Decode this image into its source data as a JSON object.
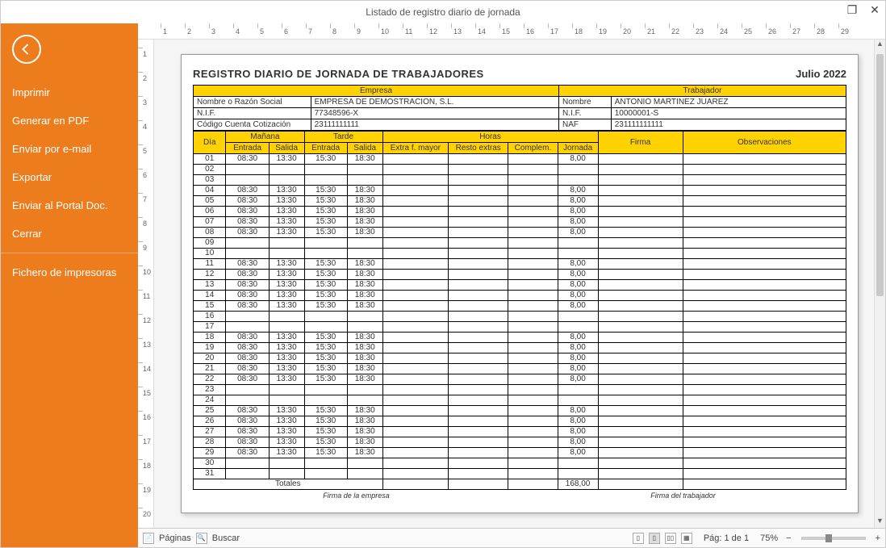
{
  "window": {
    "title": "Listado de registro diario de jornada",
    "maximize": "❐",
    "close": "✕"
  },
  "sidebar": {
    "items": [
      {
        "label": "Imprimir"
      },
      {
        "label": "Generar en PDF"
      },
      {
        "label": "Enviar por e-mail"
      },
      {
        "label": "Exportar"
      },
      {
        "label": "Enviar al Portal Doc."
      },
      {
        "label": "Cerrar"
      }
    ],
    "secondary": [
      {
        "label": "Fichero de impresoras"
      }
    ]
  },
  "rulerH": [
    "1",
    "2",
    "3",
    "4",
    "5",
    "6",
    "7",
    "8",
    "9",
    "10",
    "11",
    "12",
    "13",
    "14",
    "15",
    "16",
    "17",
    "18",
    "19",
    "20",
    "21",
    "22",
    "23",
    "24",
    "25",
    "26",
    "27",
    "28",
    "29"
  ],
  "rulerV": [
    "1",
    "2",
    "3",
    "4",
    "5",
    "6",
    "7",
    "8",
    "9",
    "10",
    "11",
    "12",
    "13",
    "14",
    "15",
    "16",
    "17",
    "18",
    "19",
    "20"
  ],
  "report": {
    "title": "REGISTRO DIARIO DE JORNADA DE TRABAJADORES",
    "period": "Julio 2022",
    "company_header": "Empresa",
    "worker_header": "Trabajador",
    "labels": {
      "razon": "Nombre o Razón Social",
      "nif": "N.I.F.",
      "ccc": "Código Cuenta Cotización",
      "nombre": "Nombre",
      "naf": "NAF"
    },
    "company": {
      "razon": "EMPRESA DE DEMOSTRACION, S.L.",
      "nif": "77348596-X",
      "ccc": "23111111111"
    },
    "worker": {
      "nombre": "ANTONIO MARTINEZ JUAREZ",
      "nif": "10000001-S",
      "naf": "231111111111"
    },
    "colgroups": {
      "dia": "Día",
      "manana": "Mañana",
      "tarde": "Tarde",
      "horas": "Horas",
      "firma": "Firma",
      "obs": "Observaciones",
      "entrada": "Entrada",
      "salida": "Salida",
      "extraf": "Extra f. mayor",
      "resto": "Resto extras",
      "complem": "Complem.",
      "jornada": "Jornada"
    },
    "rows": [
      {
        "dia": "01",
        "me": "08:30",
        "ms": "13:30",
        "te": "15:30",
        "ts": "18:30",
        "jor": "8,00"
      },
      {
        "dia": "02"
      },
      {
        "dia": "03"
      },
      {
        "dia": "04",
        "me": "08:30",
        "ms": "13:30",
        "te": "15:30",
        "ts": "18:30",
        "jor": "8,00"
      },
      {
        "dia": "05",
        "me": "08:30",
        "ms": "13:30",
        "te": "15:30",
        "ts": "18:30",
        "jor": "8,00"
      },
      {
        "dia": "06",
        "me": "08:30",
        "ms": "13:30",
        "te": "15:30",
        "ts": "18:30",
        "jor": "8,00"
      },
      {
        "dia": "07",
        "me": "08:30",
        "ms": "13:30",
        "te": "15:30",
        "ts": "18:30",
        "jor": "8,00"
      },
      {
        "dia": "08",
        "me": "08:30",
        "ms": "13:30",
        "te": "15:30",
        "ts": "18:30",
        "jor": "8,00"
      },
      {
        "dia": "09"
      },
      {
        "dia": "10"
      },
      {
        "dia": "11",
        "me": "08:30",
        "ms": "13:30",
        "te": "15:30",
        "ts": "18:30",
        "jor": "8,00"
      },
      {
        "dia": "12",
        "me": "08:30",
        "ms": "13:30",
        "te": "15:30",
        "ts": "18:30",
        "jor": "8,00"
      },
      {
        "dia": "13",
        "me": "08:30",
        "ms": "13:30",
        "te": "15:30",
        "ts": "18:30",
        "jor": "8,00"
      },
      {
        "dia": "14",
        "me": "08:30",
        "ms": "13:30",
        "te": "15:30",
        "ts": "18:30",
        "jor": "8,00"
      },
      {
        "dia": "15",
        "me": "08:30",
        "ms": "13:30",
        "te": "15:30",
        "ts": "18:30",
        "jor": "8,00"
      },
      {
        "dia": "16"
      },
      {
        "dia": "17"
      },
      {
        "dia": "18",
        "me": "08:30",
        "ms": "13:30",
        "te": "15:30",
        "ts": "18:30",
        "jor": "8,00"
      },
      {
        "dia": "19",
        "me": "08:30",
        "ms": "13:30",
        "te": "15:30",
        "ts": "18:30",
        "jor": "8,00"
      },
      {
        "dia": "20",
        "me": "08:30",
        "ms": "13:30",
        "te": "15:30",
        "ts": "18:30",
        "jor": "8,00"
      },
      {
        "dia": "21",
        "me": "08:30",
        "ms": "13:30",
        "te": "15:30",
        "ts": "18:30",
        "jor": "8,00"
      },
      {
        "dia": "22",
        "me": "08:30",
        "ms": "13:30",
        "te": "15:30",
        "ts": "18:30",
        "jor": "8,00"
      },
      {
        "dia": "23"
      },
      {
        "dia": "24"
      },
      {
        "dia": "25",
        "me": "08:30",
        "ms": "13:30",
        "te": "15:30",
        "ts": "18:30",
        "jor": "8,00"
      },
      {
        "dia": "26",
        "me": "08:30",
        "ms": "13:30",
        "te": "15:30",
        "ts": "18:30",
        "jor": "8,00"
      },
      {
        "dia": "27",
        "me": "08:30",
        "ms": "13:30",
        "te": "15:30",
        "ts": "18:30",
        "jor": "8,00"
      },
      {
        "dia": "28",
        "me": "08:30",
        "ms": "13:30",
        "te": "15:30",
        "ts": "18:30",
        "jor": "8,00"
      },
      {
        "dia": "29",
        "me": "08:30",
        "ms": "13:30",
        "te": "15:30",
        "ts": "18:30",
        "jor": "8,00"
      },
      {
        "dia": "30"
      },
      {
        "dia": "31"
      }
    ],
    "totals_label": "Totales",
    "totals_jornada": "168,00",
    "sig_company": "Firma de la empresa",
    "sig_worker": "Firma del trabajador"
  },
  "statusbar": {
    "paginas": "Páginas",
    "buscar": "Buscar",
    "page_info": "Pág: 1 de 1",
    "zoom": "75%"
  },
  "colors": {
    "accent": "#ec7c1c",
    "header_yellow": "#ffd200"
  }
}
